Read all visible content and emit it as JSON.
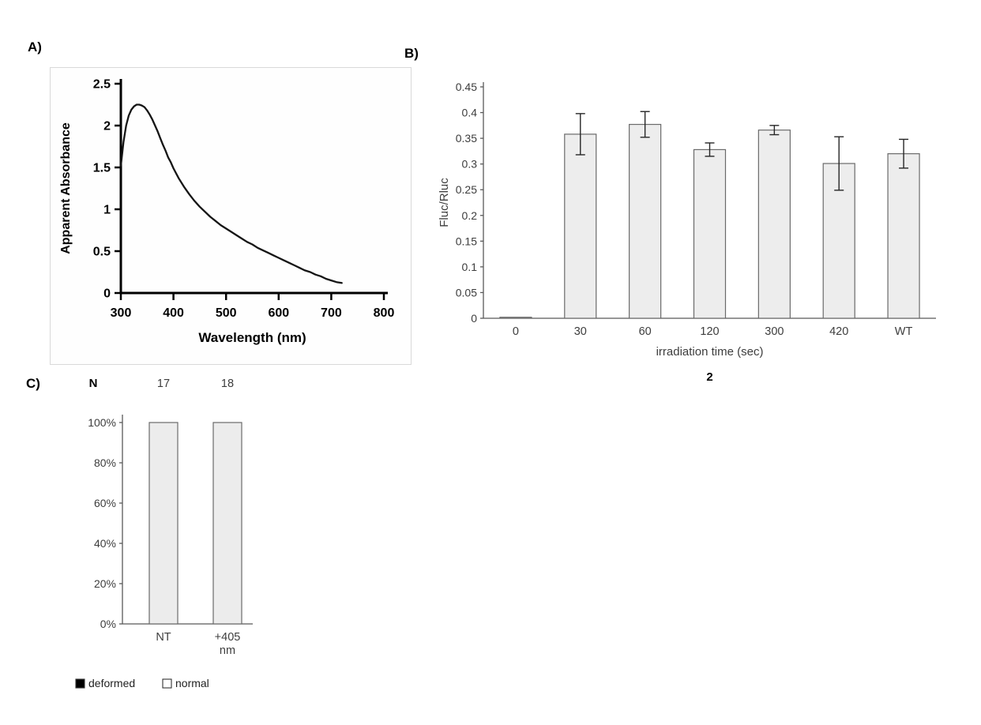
{
  "panels": {
    "a": {
      "label": "A)"
    },
    "b": {
      "label": "B)"
    },
    "c": {
      "label": "C)"
    }
  },
  "chart_data": [
    {
      "type": "line",
      "panel": "A",
      "title": "",
      "xlabel": "Wavelength (nm)",
      "ylabel": "Apparent Absorbance",
      "xlim": [
        300,
        800
      ],
      "ylim": [
        0,
        2.5
      ],
      "xticks": [
        300,
        400,
        500,
        600,
        700,
        800
      ],
      "yticks": [
        0,
        0.5,
        1,
        1.5,
        2,
        2.5
      ],
      "ytick_labels": [
        "0",
        "0.5",
        "1",
        "1.5",
        "2",
        "2.5"
      ],
      "series": [
        {
          "name": "apparent absorbance spectrum",
          "x": [
            300,
            305,
            310,
            315,
            320,
            325,
            330,
            335,
            340,
            345,
            350,
            355,
            360,
            365,
            370,
            375,
            380,
            385,
            390,
            395,
            400,
            410,
            420,
            430,
            440,
            450,
            460,
            470,
            480,
            490,
            500,
            510,
            520,
            530,
            540,
            550,
            560,
            570,
            580,
            590,
            600,
            610,
            620,
            630,
            640,
            650,
            660,
            670,
            680,
            690,
            700,
            710,
            720
          ],
          "y": [
            1.52,
            1.8,
            2.0,
            2.12,
            2.19,
            2.23,
            2.25,
            2.25,
            2.24,
            2.22,
            2.18,
            2.13,
            2.07,
            2.0,
            1.93,
            1.85,
            1.77,
            1.7,
            1.62,
            1.56,
            1.49,
            1.37,
            1.27,
            1.18,
            1.1,
            1.03,
            0.97,
            0.91,
            0.86,
            0.81,
            0.77,
            0.73,
            0.69,
            0.65,
            0.61,
            0.58,
            0.54,
            0.51,
            0.48,
            0.45,
            0.42,
            0.39,
            0.36,
            0.33,
            0.3,
            0.27,
            0.25,
            0.22,
            0.2,
            0.17,
            0.15,
            0.13,
            0.12
          ]
        }
      ]
    },
    {
      "type": "bar",
      "panel": "B",
      "title": "",
      "xlabel": "irradiation time (sec)",
      "ylabel": "Fluc/Rluc",
      "sublabel": "2",
      "categories": [
        "0",
        "30",
        "60",
        "120",
        "300",
        "420",
        "WT"
      ],
      "values": [
        0.002,
        0.358,
        0.377,
        0.328,
        0.366,
        0.301,
        0.32
      ],
      "errors": [
        0,
        0.04,
        0.025,
        0.013,
        0.009,
        0.052,
        0.028
      ],
      "ylim": [
        0,
        0.45
      ],
      "yticks": [
        0,
        0.05,
        0.1,
        0.15,
        0.2,
        0.25,
        0.3,
        0.35,
        0.4,
        0.45
      ],
      "ytick_labels": [
        "0",
        "0.05",
        "0.1",
        "0.15",
        "0.2",
        "0.25",
        "0.3",
        "0.35",
        "0.4",
        "0.45"
      ],
      "bar_fill": "#ededed",
      "bar_stroke": "#6a6a6a"
    },
    {
      "type": "stacked_bar",
      "panel": "C",
      "title": "",
      "n_label": "N",
      "n_values": [
        "17",
        "18"
      ],
      "categories": [
        [
          "NT"
        ],
        [
          "+405",
          "nm"
        ]
      ],
      "ylim": [
        0,
        100
      ],
      "ytick_values": [
        0,
        20,
        40,
        60,
        80,
        100
      ],
      "ytick_labels": [
        "0%",
        "20%",
        "40%",
        "60%",
        "80%",
        "100%"
      ],
      "series": [
        {
          "name": "deformed",
          "values": [
            0,
            0
          ],
          "fill": "#000000",
          "swatch": "#000000"
        },
        {
          "name": "normal",
          "values": [
            100,
            100
          ],
          "fill": "#ececec",
          "swatch": "#ffffff"
        }
      ],
      "legend_position": "bottom"
    }
  ]
}
